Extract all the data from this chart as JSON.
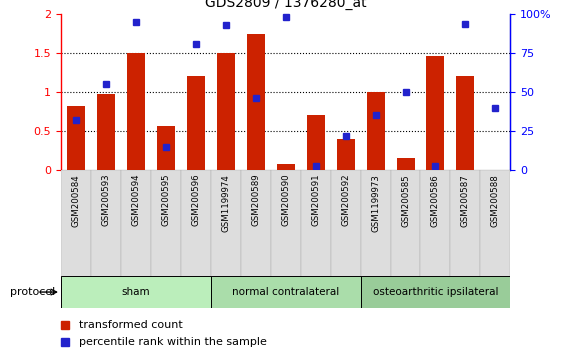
{
  "title": "GDS2809 / 1376280_at",
  "samples": [
    "GSM200584",
    "GSM200593",
    "GSM200594",
    "GSM200595",
    "GSM200596",
    "GSM1199974",
    "GSM200589",
    "GSM200590",
    "GSM200591",
    "GSM200592",
    "GSM1199973",
    "GSM200585",
    "GSM200586",
    "GSM200587",
    "GSM200588"
  ],
  "red_vals": [
    0.82,
    0.97,
    1.5,
    0.56,
    1.2,
    1.5,
    1.75,
    0.07,
    0.7,
    0.4,
    1.0,
    0.15,
    1.46,
    1.2,
    0.0
  ],
  "blue_pct": [
    32,
    55,
    95,
    15,
    81,
    93,
    46,
    98,
    2.5,
    22,
    35,
    50,
    2.5,
    94,
    40
  ],
  "group_defs": [
    [
      0,
      5,
      "sham",
      "#bbeebb"
    ],
    [
      5,
      10,
      "normal contralateral",
      "#aaddaa"
    ],
    [
      10,
      15,
      "osteoarthritic ipsilateral",
      "#99cc99"
    ]
  ],
  "ylim_left": [
    0,
    2
  ],
  "ylim_right": [
    0,
    100
  ],
  "yticks_left": [
    0,
    0.5,
    1.0,
    1.5,
    2.0
  ],
  "ytick_labels_left": [
    "0",
    "0.5",
    "1",
    "1.5",
    "2"
  ],
  "yticks_right": [
    0,
    25,
    50,
    75,
    100
  ],
  "ytick_labels_right": [
    "0",
    "25",
    "50",
    "75",
    "100%"
  ],
  "bar_color": "#cc2200",
  "dot_color": "#2222cc",
  "bg_color": "#ffffff",
  "legend_items": [
    "transformed count",
    "percentile rank within the sample"
  ],
  "protocol_label": "protocol"
}
